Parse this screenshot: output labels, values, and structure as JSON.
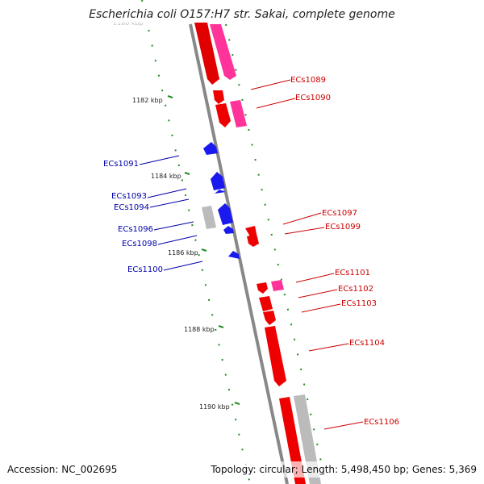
{
  "title": "Escherichia coli O157:H7 str. Sakai, complete genome",
  "accession": "Accession: NC_002695",
  "summary": "Topology: circular; Length: 5,498,450 bp; Genes: 5,369",
  "colors": {
    "forward_cds": "#ff0000",
    "forward_other": "#ff3399",
    "reverse_cds": "#0000ff",
    "pseudo": "#bbbbbb",
    "backbone": "#888888",
    "tick": "#228b22",
    "fwd_label": "#cc0000",
    "rev_label": "#0000aa"
  },
  "kbp_labels": [
    "1180 kbp",
    "1182 kbp",
    "1184 kbp",
    "1186 kbp",
    "1188 kbp",
    "1190 kbp"
  ],
  "forward_genes": [
    "ECs1089",
    "ECs1090",
    "ECs1097",
    "ECs1099",
    "ECs1101",
    "ECs1102",
    "ECs1103",
    "ECs1104",
    "ECs1106"
  ],
  "reverse_genes": [
    "ECs1091",
    "ECs1093",
    "ECs1094",
    "ECs1096",
    "ECs1098",
    "ECs1100"
  ]
}
